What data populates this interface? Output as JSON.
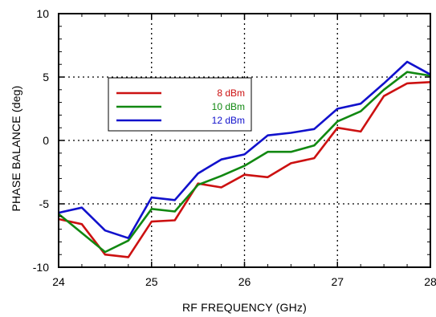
{
  "chart_data": {
    "type": "line",
    "xlabel": "RF FREQUENCY (GHz)",
    "ylabel": "PHASE BALANCE  (deg)",
    "xlim": [
      24,
      28
    ],
    "ylim": [
      -10,
      10
    ],
    "xticks": [
      24,
      25,
      26,
      27,
      28
    ],
    "yticks": [
      -10,
      -5,
      0,
      5,
      10
    ],
    "grid": "dotted",
    "legend_position": "upper-left",
    "x": [
      24.0,
      24.25,
      24.5,
      24.75,
      25.0,
      25.25,
      25.5,
      25.75,
      26.0,
      26.25,
      26.5,
      26.75,
      27.0,
      27.25,
      27.5,
      27.75,
      28.0
    ],
    "series": [
      {
        "name": "8 dBm",
        "color": "#cc1111",
        "values": [
          -6.2,
          -6.6,
          -9.0,
          -9.2,
          -6.4,
          -6.3,
          -3.4,
          -3.7,
          -2.7,
          -2.9,
          -1.8,
          -1.4,
          1.0,
          0.7,
          3.5,
          4.5,
          4.6
        ]
      },
      {
        "name": "10 dBm",
        "color": "#118811",
        "values": [
          -5.8,
          -7.3,
          -8.8,
          -7.9,
          -5.4,
          -5.6,
          -3.5,
          -2.8,
          -2.0,
          -0.9,
          -0.9,
          -0.4,
          1.5,
          2.3,
          4.0,
          5.4,
          5.1
        ]
      },
      {
        "name": "12 dBm",
        "color": "#1111cc",
        "values": [
          -5.7,
          -5.3,
          -7.1,
          -7.7,
          -4.5,
          -4.7,
          -2.6,
          -1.5,
          -1.1,
          0.4,
          0.6,
          0.9,
          2.5,
          2.9,
          4.5,
          6.2,
          5.2
        ]
      }
    ]
  }
}
